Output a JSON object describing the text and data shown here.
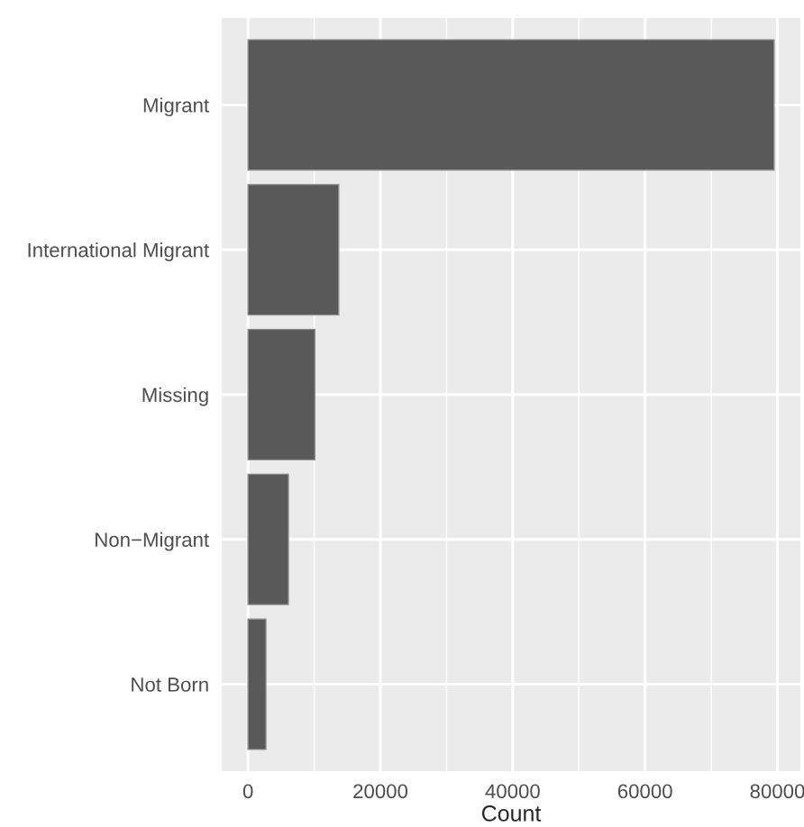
{
  "chart_data": {
    "type": "bar",
    "orientation": "horizontal",
    "xlabel": "Count",
    "categories": [
      "Migrant",
      "International Migrant",
      "Missing",
      "Non−Migrant",
      "Not Born"
    ],
    "values": [
      79500,
      13700,
      10100,
      6100,
      2700
    ],
    "color": "#595959",
    "xlim": [
      -3975,
      83475
    ],
    "xticks": [
      0,
      20000,
      40000,
      60000,
      80000
    ],
    "grid": true
  }
}
